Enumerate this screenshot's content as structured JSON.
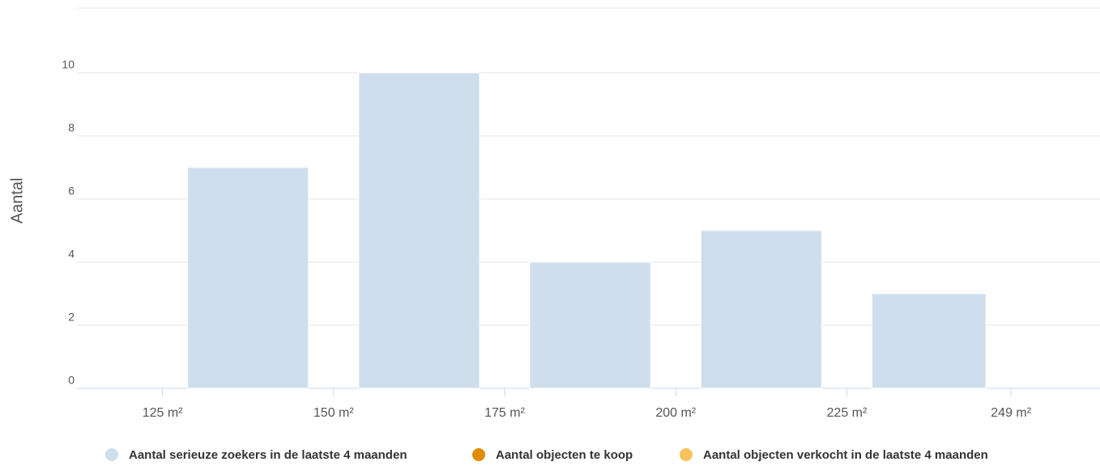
{
  "chart_data": {
    "type": "histogram",
    "y_label": "Aantal",
    "bins": [
      {
        "value": 125,
        "label": "125 m²"
      },
      {
        "value": 150,
        "label": "150 m²"
      },
      {
        "value": 175,
        "label": "175 m²"
      },
      {
        "value": 200,
        "label": "200 m²"
      },
      {
        "value": 225,
        "label": "225 m²"
      },
      {
        "value": 249,
        "label": "249 m²"
      }
    ],
    "series": [
      {
        "name": "Aantal serieuze zoekers in de laatste 4 maanden",
        "color": "#cfdeec",
        "values": [
          7,
          10,
          4,
          5,
          3
        ]
      }
    ],
    "legend": [
      {
        "name": "Aantal serieuze zoekers in de laatste 4 maanden",
        "color": "#cfdeec"
      },
      {
        "name": "Aantal objecten te koop",
        "color": "#e08c00"
      },
      {
        "name": "Aantal objecten verkocht in de laatste 4 maanden",
        "color": "#f6c25e"
      }
    ],
    "xlim": [
      112.5,
      262
    ],
    "ylim": [
      0,
      12
    ],
    "yticks": [
      0,
      2,
      4,
      6,
      8,
      10
    ],
    "grid": true
  }
}
